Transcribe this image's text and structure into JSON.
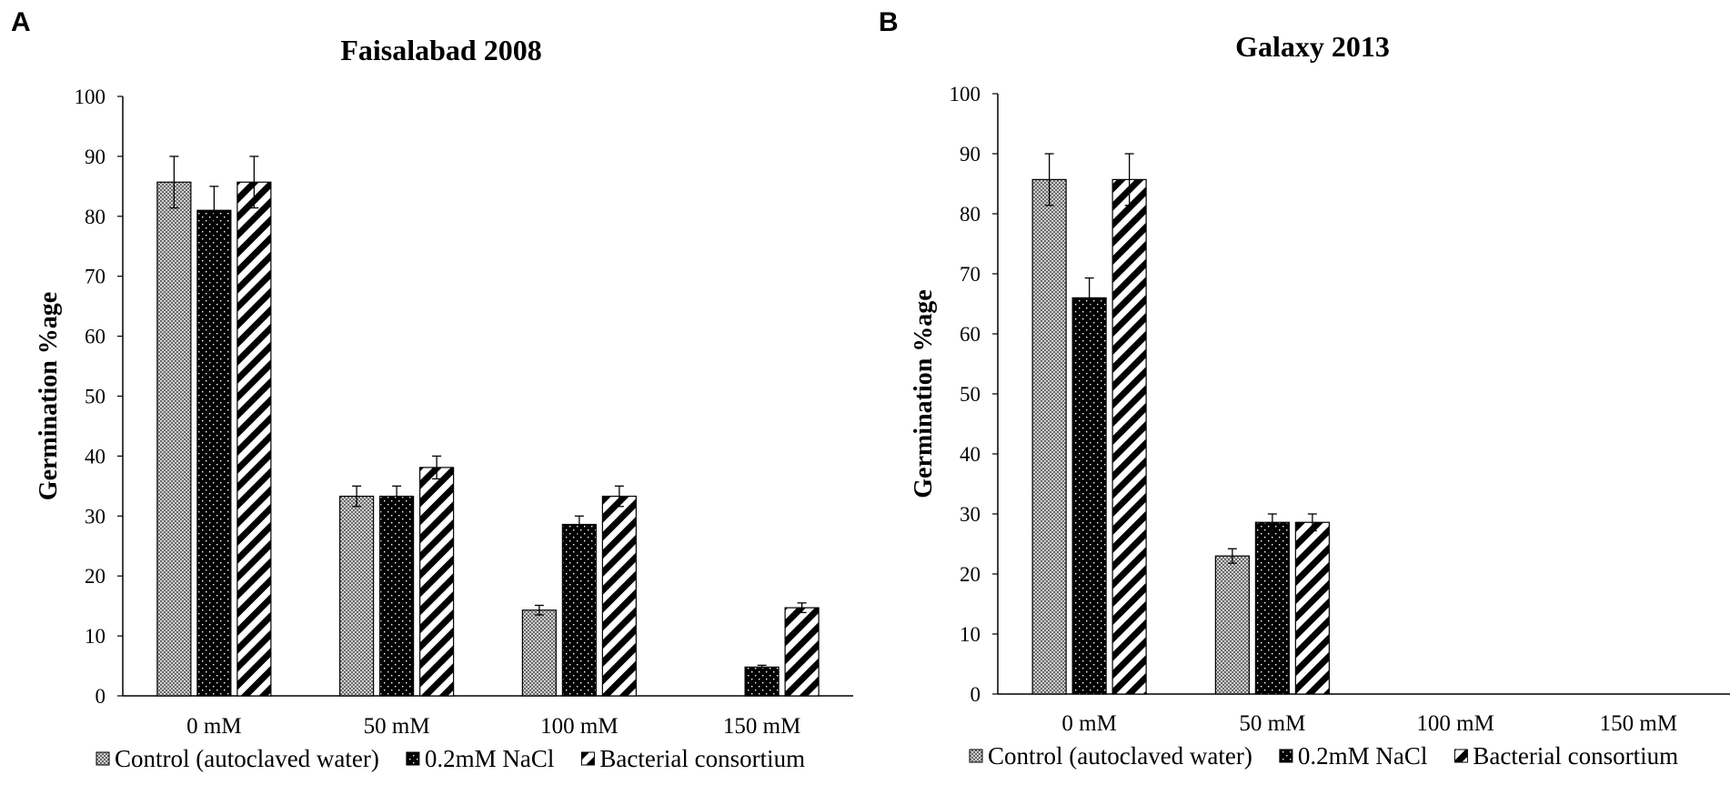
{
  "legend": {
    "items": [
      {
        "label": "Control (autoclaved water)",
        "pattern": "checker"
      },
      {
        "label": "0.2mM NaCl",
        "pattern": "dots"
      },
      {
        "label": "Bacterial consortium",
        "pattern": "stripes"
      }
    ]
  },
  "chart_data": [
    {
      "type": "bar",
      "panel": "A",
      "title": "Faisalabad 2008",
      "xlabel": "",
      "ylabel": "Germination %age",
      "ylim": [
        0,
        100
      ],
      "yticks": [
        0,
        10,
        20,
        30,
        40,
        50,
        60,
        70,
        80,
        90,
        100
      ],
      "categories": [
        "0 mM",
        "50 mM",
        "100 mM",
        "150 mM"
      ],
      "series": [
        {
          "name": "Control (autoclaved water)",
          "values": [
            85.7,
            33.3,
            14.3,
            0
          ],
          "errors": [
            4.3,
            1.7,
            0.8,
            0
          ]
        },
        {
          "name": "0.2mM NaCl",
          "values": [
            81.0,
            33.3,
            28.6,
            4.8
          ],
          "errors": [
            4.0,
            1.7,
            1.4,
            0.3
          ]
        },
        {
          "name": "Bacterial consortium",
          "values": [
            85.7,
            38.1,
            33.3,
            14.7
          ],
          "errors": [
            4.3,
            1.9,
            1.7,
            0.8
          ]
        }
      ]
    },
    {
      "type": "bar",
      "panel": "B",
      "title": "Galaxy 2013",
      "xlabel": "",
      "ylabel": "Germination %age",
      "ylim": [
        0,
        100
      ],
      "yticks": [
        0,
        10,
        20,
        30,
        40,
        50,
        60,
        70,
        80,
        90,
        100
      ],
      "categories": [
        "0 mM",
        "50 mM",
        "100 mM",
        "150 mM"
      ],
      "series": [
        {
          "name": "Control (autoclaved water)",
          "values": [
            85.7,
            23.0,
            0,
            0
          ],
          "errors": [
            4.3,
            1.2,
            0,
            0
          ]
        },
        {
          "name": "0.2mM NaCl",
          "values": [
            66.0,
            28.6,
            0,
            0
          ],
          "errors": [
            3.3,
            1.4,
            0,
            0
          ]
        },
        {
          "name": "Bacterial consortium",
          "values": [
            85.7,
            28.6,
            0,
            0
          ],
          "errors": [
            4.3,
            1.4,
            0,
            0
          ]
        }
      ]
    }
  ]
}
